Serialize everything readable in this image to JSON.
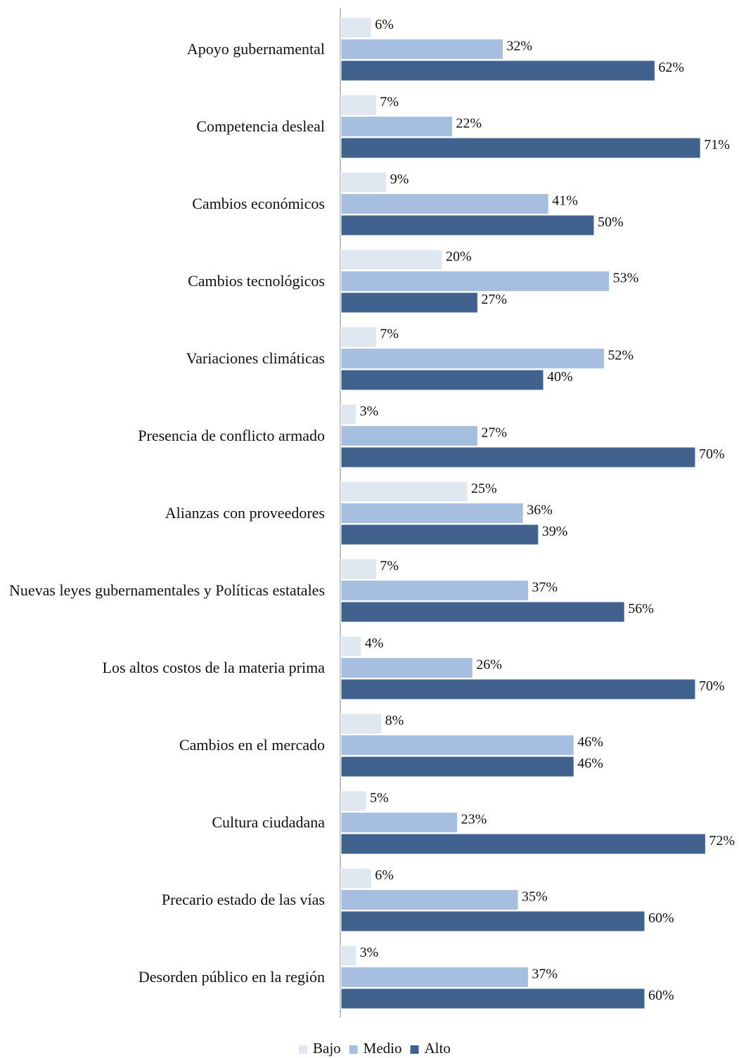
{
  "chart_data": {
    "type": "bar",
    "orientation": "horizontal",
    "categories": [
      "Apoyo gubernamental",
      "Competencia desleal",
      "Cambios económicos",
      "Cambios tecnológicos",
      "Variaciones climáticas",
      "Presencia de conflicto armado",
      "Alianzas con  proveedores",
      "Nuevas leyes gubernamentales y Políticas estatales",
      "Los altos costos de la materia prima",
      "Cambios en el mercado",
      "Cultura ciudadana",
      "Precario estado de las vías",
      "Desorden público en la región"
    ],
    "series": [
      {
        "name": "Bajo",
        "color": "#dfe7f1",
        "values": [
          6,
          7,
          9,
          20,
          7,
          3,
          25,
          7,
          4,
          8,
          5,
          6,
          3
        ],
        "value_labels": [
          "6%",
          "7%",
          "9%",
          "20%",
          "7%",
          "3%",
          "25%",
          "7%",
          "4%",
          "8%",
          "5%",
          "6%",
          "3%"
        ]
      },
      {
        "name": "Medio",
        "color": "#a6bedf",
        "values": [
          32,
          22,
          41,
          53,
          52,
          27,
          36,
          37,
          26,
          46,
          23,
          35,
          37
        ],
        "value_labels": [
          "32%",
          "22%",
          "41%",
          "53%",
          "52%",
          "27%",
          "36%",
          "37%",
          "26%",
          "46%",
          "23%",
          "35%",
          "37%"
        ]
      },
      {
        "name": "Alto",
        "color": "#41618f",
        "values": [
          62,
          71,
          50,
          27,
          40,
          70,
          39,
          56,
          70,
          46,
          72,
          60,
          60
        ],
        "value_labels": [
          "62%",
          "71%",
          "50%",
          "27%",
          "40%",
          "70%",
          "39%",
          "56%",
          "70%",
          "46%",
          "72%",
          "60%",
          "60%"
        ]
      }
    ],
    "legend": "bottom"
  }
}
